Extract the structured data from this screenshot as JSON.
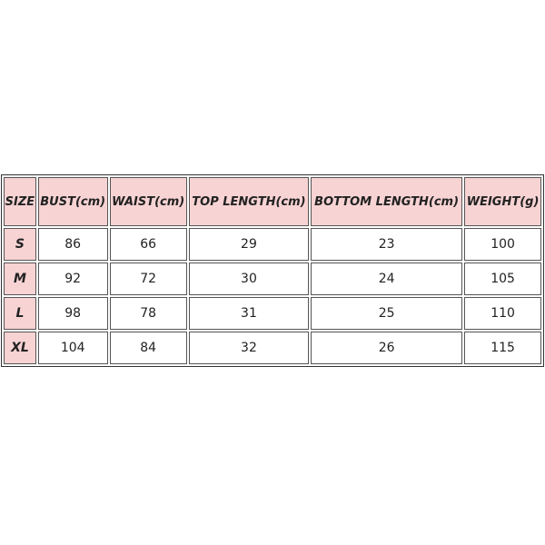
{
  "table": {
    "headers": [
      "SIZE",
      "BUST(cm)",
      "WAIST(cm)",
      "TOP LENGTH(cm)",
      "BOTTOM LENGTH(cm)",
      "WEIGHT(g)"
    ],
    "rows": [
      [
        "S",
        "86",
        "66",
        "29",
        "23",
        "100"
      ],
      [
        "M",
        "92",
        "72",
        "30",
        "24",
        "105"
      ],
      [
        "L",
        "98",
        "78",
        "31",
        "25",
        "110"
      ],
      [
        "XL",
        "104",
        "84",
        "32",
        "26",
        "115"
      ]
    ],
    "header_color": "#f8d3d3"
  }
}
